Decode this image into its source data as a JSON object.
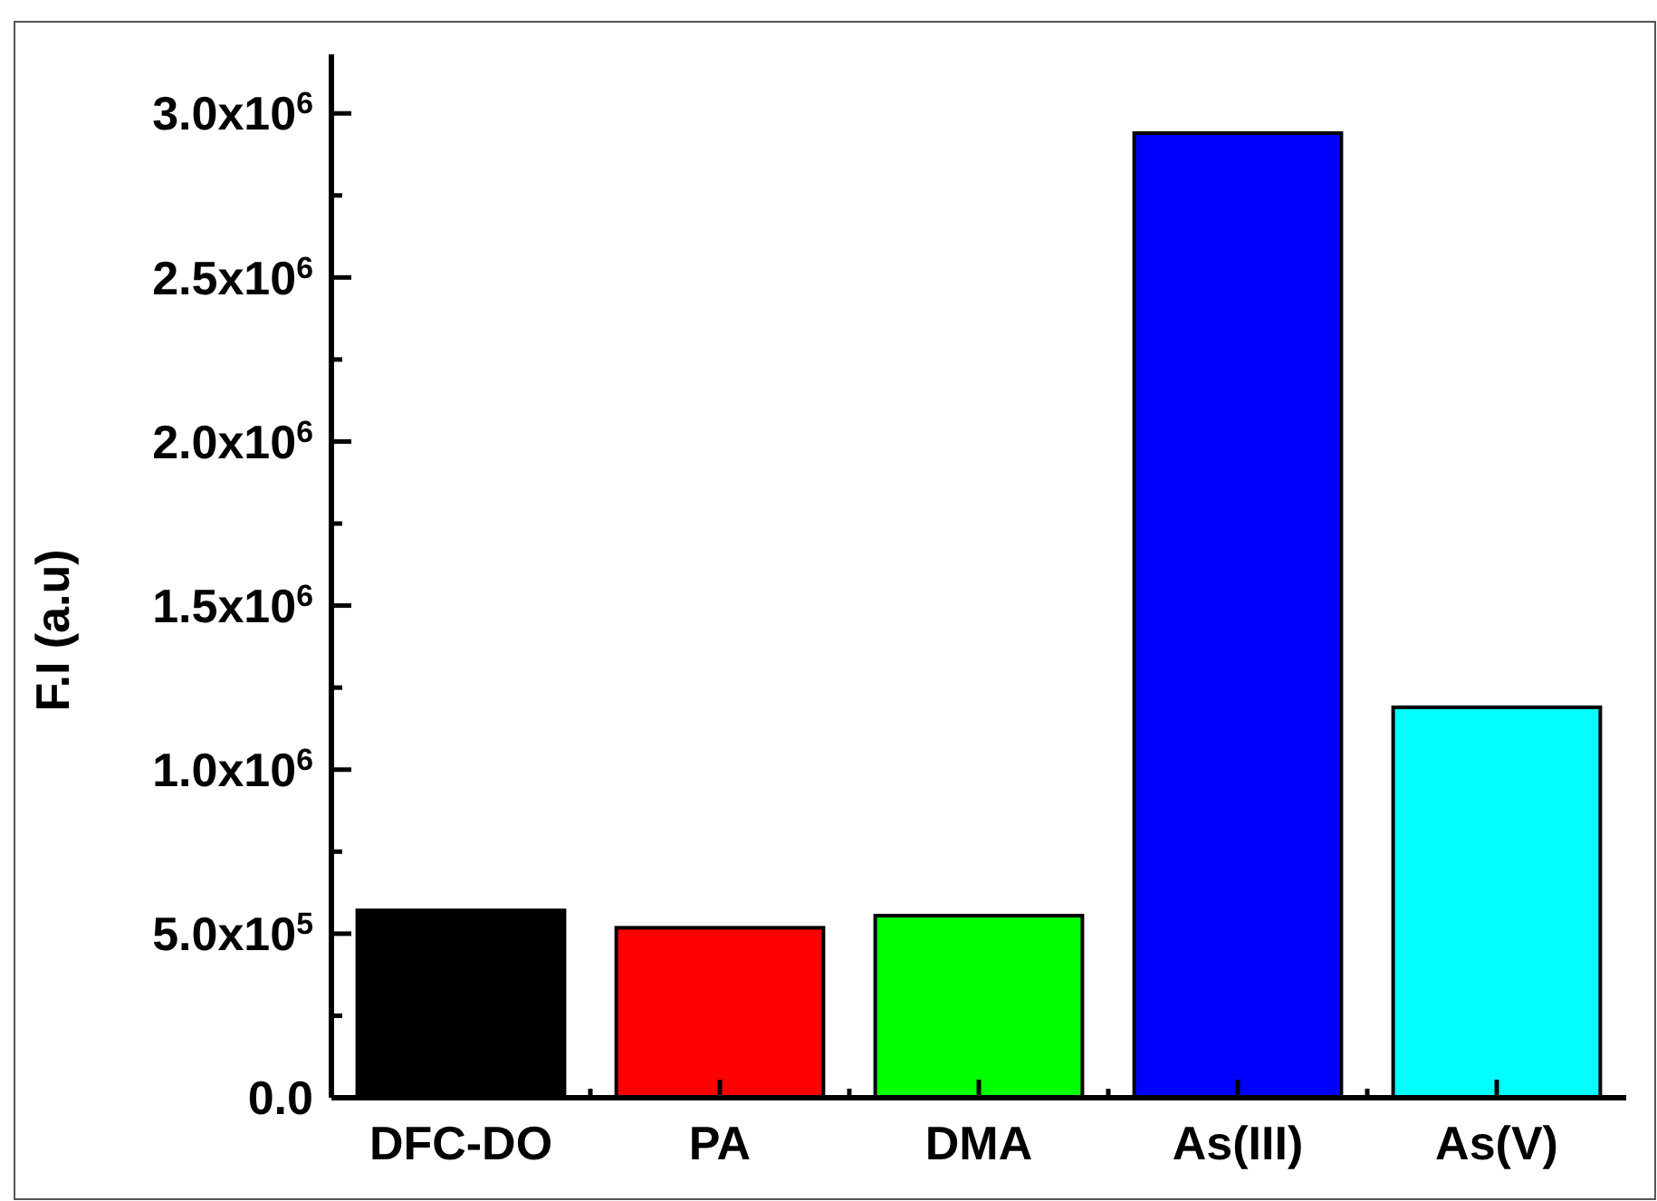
{
  "chart_data": {
    "type": "bar",
    "ylabel": "F.I (a.u)",
    "categories": [
      "DFC-DO",
      "PA",
      "DMA",
      "As(III)",
      "As(V)"
    ],
    "values": [
      571000,
      518000,
      555000,
      2940000,
      1190000
    ],
    "colors": [
      "#000000",
      "#ff0000",
      "#00ff00",
      "#0000ff",
      "#00ffff"
    ],
    "ylim": [
      0,
      3180000
    ],
    "yticks": [
      {
        "value": 0,
        "label": "0.0"
      },
      {
        "value": 250000,
        "label": null
      },
      {
        "value": 500000,
        "label": "5.0x10$^{5}$"
      },
      {
        "value": 750000,
        "label": null
      },
      {
        "value": 1000000,
        "label": "1.0x10$^{6}$"
      },
      {
        "value": 1250000,
        "label": null
      },
      {
        "value": 1500000,
        "label": "1.5x10$^{6}$"
      },
      {
        "value": 1750000,
        "label": null
      },
      {
        "value": 2000000,
        "label": "2.0x10$^{6}$"
      },
      {
        "value": 2250000,
        "label": null
      },
      {
        "value": 2500000,
        "label": "2.5x10$^{6}$"
      },
      {
        "value": 2750000,
        "label": null
      },
      {
        "value": 3000000,
        "label": "3.0x10$^{6}$"
      }
    ],
    "grid": false
  }
}
